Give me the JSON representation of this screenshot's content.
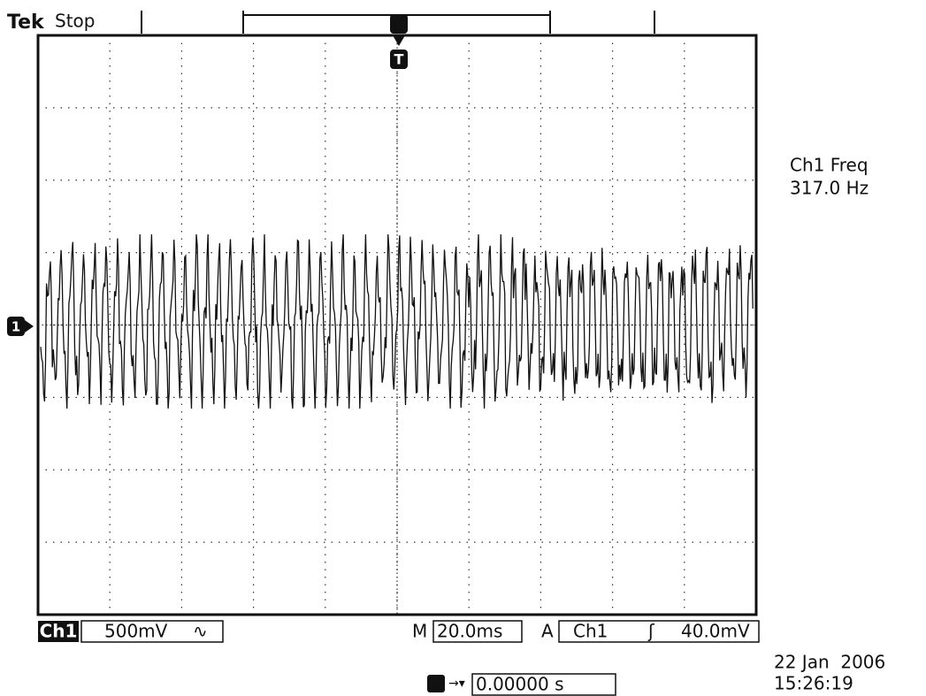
{
  "header": {
    "brand": "Tek",
    "status": "Stop"
  },
  "markers": {
    "trigger": "T",
    "channel": "1"
  },
  "measurement": {
    "label": "Ch1 Freq",
    "value": "317.0 Hz"
  },
  "footer": {
    "channel": "Ch1",
    "scale": "500mV",
    "coupling": "∿",
    "timebase_prefix": "M",
    "timebase": "20.0ms",
    "trigger_prefix": "A",
    "trigger_source": "Ch1",
    "trigger_slope": "ʃ",
    "trigger_level": "40.0mV",
    "position": "0.00000 s",
    "date": "22 Jan  2006",
    "time": "15:26:19"
  }
}
